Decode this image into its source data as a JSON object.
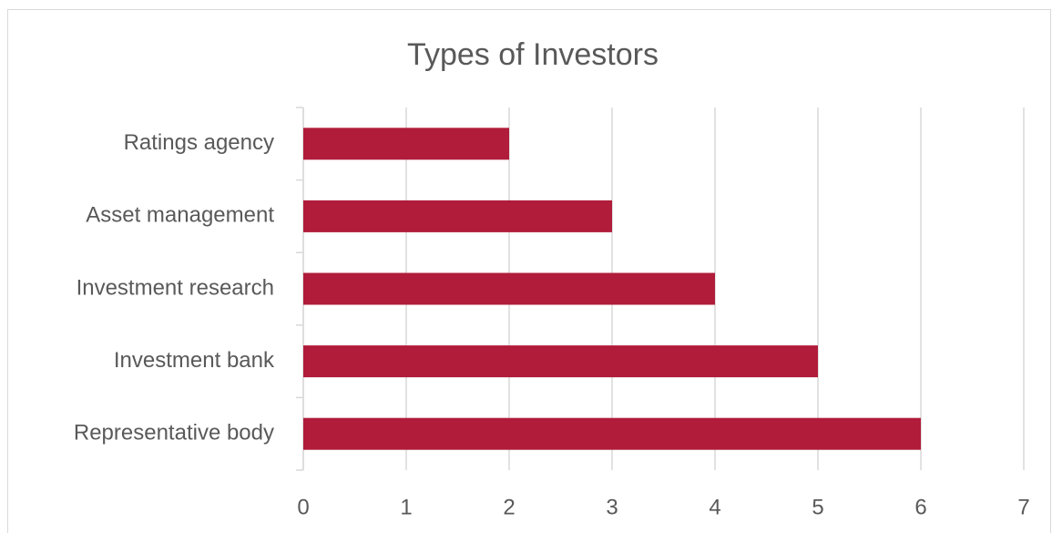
{
  "chart_data": {
    "type": "bar",
    "orientation": "horizontal",
    "title": "Types of Investors",
    "categories": [
      "Ratings agency",
      "Asset management",
      "Investment research",
      "Investment bank",
      "Representative body"
    ],
    "values": [
      2,
      3,
      4,
      5,
      6
    ],
    "color": "#b01c3a",
    "xlim": [
      0,
      7
    ],
    "xticks": [
      0,
      1,
      2,
      3,
      4,
      5,
      6,
      7
    ],
    "grid": true
  }
}
